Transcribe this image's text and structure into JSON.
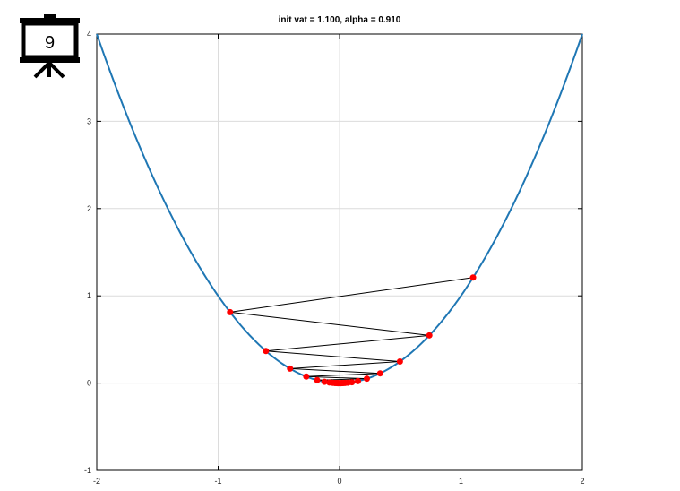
{
  "badge": {
    "number": "9",
    "icon": "presentation-board-icon"
  },
  "chart_data": {
    "type": "line",
    "title": "init vat = 1.100, alpha = 0.910",
    "xlabel": "",
    "ylabel": "",
    "xlim": [
      -2,
      2
    ],
    "ylim": [
      -1,
      4
    ],
    "xticks": [
      -2,
      -1,
      0,
      1,
      2
    ],
    "yticks": [
      -1,
      0,
      1,
      2,
      3,
      4
    ],
    "grid": true,
    "series": [
      {
        "kind": "curve",
        "function": "y = x^2",
        "color": "#1f77b4"
      },
      {
        "kind": "iterates",
        "color": "#ff0000",
        "line_color": "#000000",
        "points": [
          [
            1.1,
            1.21
          ],
          [
            -0.902,
            0.8136
          ],
          [
            0.7396,
            0.547
          ],
          [
            -0.6065,
            0.3678
          ],
          [
            0.4973,
            0.2473
          ],
          [
            -0.4078,
            0.1663
          ],
          [
            0.3344,
            0.1118
          ],
          [
            -0.2742,
            0.0752
          ],
          [
            0.2249,
            0.0506
          ],
          [
            -0.1844,
            0.034
          ],
          [
            0.1512,
            0.0229
          ],
          [
            -0.124,
            0.0154
          ],
          [
            0.1017,
            0.0103
          ],
          [
            -0.0834,
            0.007
          ],
          [
            0.0684,
            0.0047
          ],
          [
            -0.0561,
            0.0031
          ],
          [
            0.046,
            0.0021
          ],
          [
            -0.0377,
            0.0014
          ],
          [
            0.0309,
            0.001
          ],
          [
            -0.0253,
            0.0006
          ],
          [
            0.0208,
            0.0004
          ],
          [
            -0.0171,
            0.0003
          ],
          [
            0.014,
            0.0002
          ],
          [
            -0.0115,
            0.0001
          ],
          [
            0.0094,
            0.0001
          ],
          [
            -0.0077,
            0.0001
          ]
        ]
      }
    ]
  }
}
